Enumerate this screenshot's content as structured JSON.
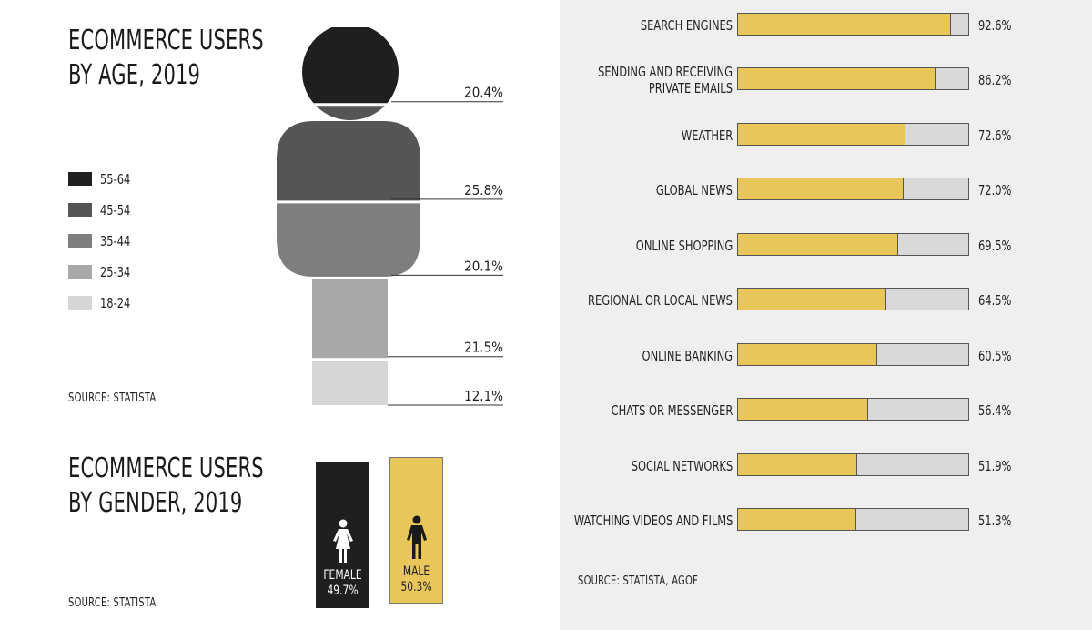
{
  "age_panel": {
    "title_line1": "ECOMMERCE USERS",
    "title_line2": "BY AGE, 2019",
    "source": "SOURCE: STATISTA",
    "legend": [
      {
        "label": "55-64",
        "color": "#1f1f1f"
      },
      {
        "label": "45-54",
        "color": "#555555"
      },
      {
        "label": "35-44",
        "color": "#7e7e7e"
      },
      {
        "label": "25-34",
        "color": "#a8a8a8"
      },
      {
        "label": "18-24",
        "color": "#d5d5d5"
      }
    ]
  },
  "gender_panel": {
    "title_line1": "ECOMMERCE USERS",
    "title_line2": "BY GENDER, 2019",
    "source": "SOURCE: STATISTA",
    "female": {
      "label": "FEMALE",
      "value": "49.7%",
      "icon": "female-person-icon",
      "color": "#1f1f1f"
    },
    "male": {
      "label": "MALE",
      "value": "50.3%",
      "icon": "male-person-icon",
      "color": "#e8c65a"
    }
  },
  "bars_panel": {
    "source": "SOURCE: STATISTA, AGOF",
    "fill_color": "#e8c65a",
    "track_color": "#d9d9d9"
  },
  "chart_data": [
    {
      "type": "bar",
      "chart": "age",
      "categories": [
        "55-64",
        "45-54",
        "35-44",
        "25-34",
        "18-24"
      ],
      "values": [
        20.4,
        25.8,
        20.1,
        21.5,
        12.1
      ],
      "labels": [
        "20.4%",
        "25.8%",
        "20.1%",
        "21.5%",
        "12.1%"
      ],
      "title": "ECOMMERCE USERS BY AGE, 2019",
      "colors": [
        "#1f1f1f",
        "#555555",
        "#7e7e7e",
        "#a8a8a8",
        "#d5d5d5"
      ]
    },
    {
      "type": "bar",
      "chart": "gender",
      "categories": [
        "FEMALE",
        "MALE"
      ],
      "values": [
        49.7,
        50.3
      ],
      "title": "ECOMMERCE USERS BY GENDER, 2019"
    },
    {
      "type": "bar",
      "chart": "internet_activities",
      "orientation": "horizontal",
      "categories": [
        "SEARCH ENGINES",
        "SENDING AND RECEIVING PRIVATE EMAILS",
        "WEATHER",
        "GLOBAL NEWS",
        "ONLINE SHOPPING",
        "REGIONAL OR LOCAL NEWS",
        "ONLINE BANKING",
        "CHATS OR MESSENGER",
        "SOCIAL NETWORKS",
        "WATCHING VIDEOS AND FILMS"
      ],
      "label_lines": [
        [
          "SEARCH ENGINES"
        ],
        [
          "SENDING AND RECEIVING",
          "PRIVATE EMAILS"
        ],
        [
          "WEATHER"
        ],
        [
          "GLOBAL NEWS"
        ],
        [
          "ONLINE SHOPPING"
        ],
        [
          "REGIONAL OR LOCAL NEWS"
        ],
        [
          "ONLINE BANKING"
        ],
        [
          "CHATS OR MESSENGER"
        ],
        [
          "SOCIAL NETWORKS"
        ],
        [
          "WATCHING VIDEOS AND FILMS"
        ]
      ],
      "values": [
        92.6,
        86.2,
        72.6,
        72.0,
        69.5,
        64.5,
        60.5,
        56.4,
        51.9,
        51.3
      ],
      "labels": [
        "92.6%",
        "86.2%",
        "72.6%",
        "72.0%",
        "69.5%",
        "64.5%",
        "60.5%",
        "56.4%",
        "51.9%",
        "51.3%"
      ],
      "xlim": [
        0,
        100
      ]
    }
  ]
}
